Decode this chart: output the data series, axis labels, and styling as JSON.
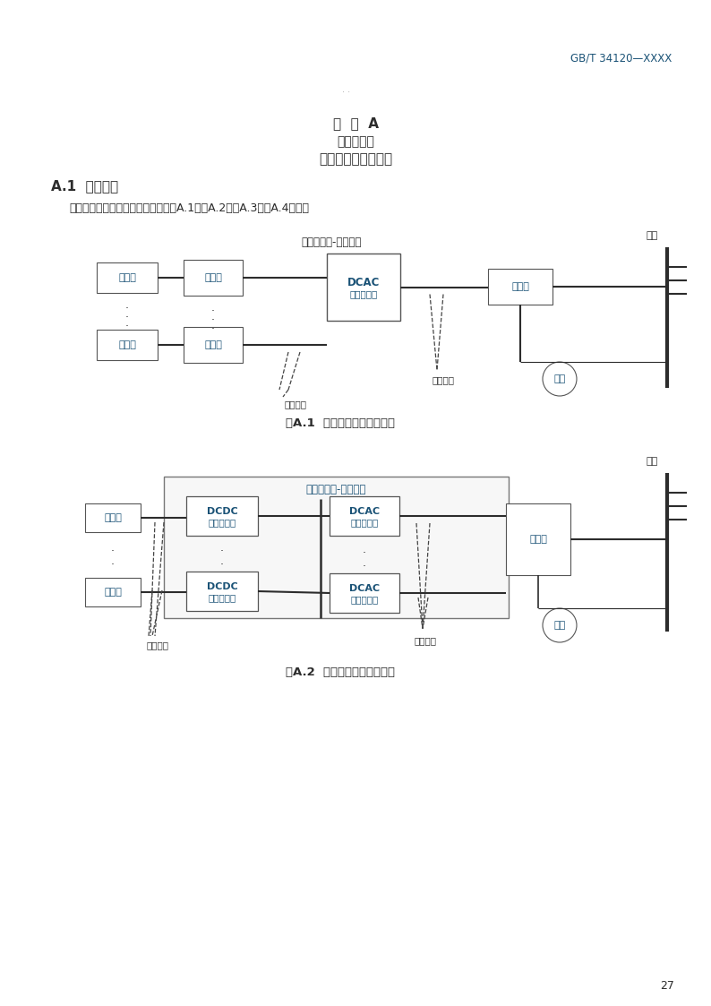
{
  "page_header": "GB/T 34120—XXXX",
  "title_line1": "附  录  A",
  "title_line2": "（资料性）",
  "title_line3": "储能变流器典型拓扑",
  "section_title": "A.1  典型拓扑",
  "section_text": "储能变流器各架构典型拓扑结构如图A.1、图A.2、图A.3和图A.4所示。",
  "diag1_label": "储能变流器-单级架构",
  "diag1_caption": "图A.1  单级变换架构典型拓扑",
  "diag2_title": "储能变流器-双级架构",
  "diag2_caption": "图A.2  双级变换架构典型拓扑",
  "grid": "电网",
  "load": "负载",
  "battery": "电池簇",
  "switchbox": "开关盒",
  "dcac": "DCAC",
  "dcac2": "双向变换器",
  "dcdc": "DCDC",
  "dcdc2": "双向变换器",
  "transformer": "变压器",
  "dc_port": "直流端口",
  "ac_port": "交流端口",
  "page_number": "27",
  "tc": "#1a5276",
  "dark": "#2c2c2c",
  "gray_box": "#666666",
  "light_gray": "#e8e8e8",
  "bg": "#ffffff"
}
